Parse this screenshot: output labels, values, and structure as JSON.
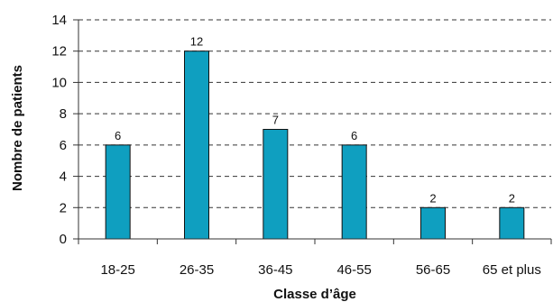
{
  "chart_data": {
    "type": "bar",
    "title": "",
    "xlabel": "Classe d’âge",
    "ylabel": "Nombre de patients",
    "categories": [
      "18-25",
      "26-35",
      "36-45",
      "46-55",
      "56-65",
      "65 et plus"
    ],
    "values": [
      6,
      12,
      7,
      6,
      2,
      2
    ],
    "ylim": [
      0,
      14
    ],
    "yticks": [
      0,
      2,
      4,
      6,
      8,
      10,
      12,
      14
    ],
    "data_labels": [
      "6",
      "12",
      "7",
      "6",
      "2",
      "2"
    ],
    "grid": "horizontal dashed",
    "legend": "none",
    "colors": {
      "bar_fill": "#0f9fc0",
      "bar_stroke": "#111111",
      "grid": "#333333",
      "axis": "#333333"
    }
  }
}
